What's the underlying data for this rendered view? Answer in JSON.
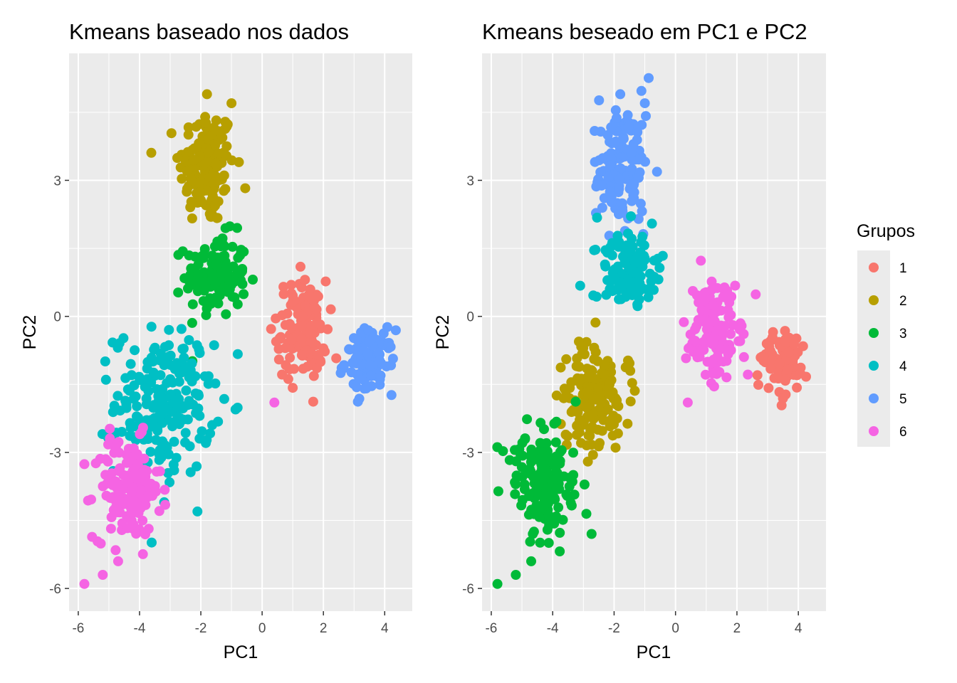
{
  "legend": {
    "title": "Grupos",
    "entries": [
      {
        "label": "1",
        "color": "#F8766D"
      },
      {
        "label": "2",
        "color": "#B79F00"
      },
      {
        "label": "3",
        "color": "#00BA38"
      },
      {
        "label": "4",
        "color": "#00BFC4"
      },
      {
        "label": "5",
        "color": "#619CFF"
      },
      {
        "label": "6",
        "color": "#F564E3"
      }
    ]
  },
  "chart_data": [
    {
      "type": "scatter",
      "title": "Kmeans baseado nos dados",
      "xlabel": "PC1",
      "ylabel": "PC2",
      "xlim": [
        -6.3,
        4.9
      ],
      "ylim": [
        -6.5,
        5.8
      ],
      "xticks": [
        -6,
        -4,
        -2,
        0,
        2,
        4
      ],
      "yticks": [
        -6,
        -3,
        0,
        3
      ],
      "grid": true,
      "legend": "none",
      "clusters": [
        {
          "group": "2",
          "cx": -1.8,
          "cy": 3.3,
          "sx": 0.45,
          "sy": 0.65,
          "n": 150
        },
        {
          "group": "3",
          "cx": -1.5,
          "cy": 0.9,
          "sx": 0.5,
          "sy": 0.45,
          "n": 130
        },
        {
          "group": "1",
          "cx": 1.3,
          "cy": -0.3,
          "sx": 0.4,
          "sy": 0.55,
          "n": 130
        },
        {
          "group": "5",
          "cx": 3.5,
          "cy": -1.0,
          "sx": 0.4,
          "sy": 0.35,
          "n": 100
        },
        {
          "group": "4",
          "cx": -3.2,
          "cy": -1.9,
          "sx": 0.8,
          "sy": 0.8,
          "n": 200
        },
        {
          "group": "6",
          "cx": -4.4,
          "cy": -3.8,
          "sx": 0.55,
          "sy": 0.55,
          "n": 150
        }
      ],
      "extra_points": [
        {
          "group": "6",
          "x": -5.8,
          "y": -5.9
        },
        {
          "group": "6",
          "x": -5.2,
          "y": -5.7
        },
        {
          "group": "6",
          "x": -4.7,
          "y": -5.4
        },
        {
          "group": "6",
          "x": 0.4,
          "y": -1.9
        },
        {
          "group": "2",
          "x": -1.0,
          "y": 4.7
        },
        {
          "group": "2",
          "x": -1.8,
          "y": 4.9
        }
      ]
    },
    {
      "type": "scatter",
      "title": "Kmeans beseado em PC1 e PC2",
      "xlabel": "PC1",
      "ylabel": "PC2",
      "xlim": [
        -6.3,
        4.9
      ],
      "ylim": [
        -6.5,
        5.8
      ],
      "xticks": [
        -6,
        -4,
        -2,
        0,
        2,
        4
      ],
      "yticks": [
        -6,
        -3,
        0,
        3
      ],
      "grid": true,
      "legend": "right",
      "clusters": [
        {
          "group": "5",
          "cx": -1.8,
          "cy": 3.3,
          "sx": 0.45,
          "sy": 0.65,
          "n": 150
        },
        {
          "group": "4",
          "cx": -1.5,
          "cy": 1.0,
          "sx": 0.5,
          "sy": 0.45,
          "n": 130
        },
        {
          "group": "6",
          "cx": 1.3,
          "cy": -0.3,
          "sx": 0.4,
          "sy": 0.55,
          "n": 130
        },
        {
          "group": "1",
          "cx": 3.5,
          "cy": -1.0,
          "sx": 0.4,
          "sy": 0.35,
          "n": 100
        },
        {
          "group": "2",
          "cx": -2.7,
          "cy": -1.8,
          "sx": 0.55,
          "sy": 0.6,
          "n": 150
        },
        {
          "group": "3",
          "cx": -4.3,
          "cy": -3.7,
          "sx": 0.55,
          "sy": 0.6,
          "n": 160
        }
      ],
      "extra_points": [
        {
          "group": "3",
          "x": -5.8,
          "y": -5.9
        },
        {
          "group": "3",
          "x": -5.2,
          "y": -5.7
        },
        {
          "group": "3",
          "x": -4.7,
          "y": -5.4
        },
        {
          "group": "6",
          "x": 0.4,
          "y": -1.9
        },
        {
          "group": "5",
          "x": -1.0,
          "y": 4.7
        },
        {
          "group": "5",
          "x": -1.8,
          "y": 4.9
        }
      ]
    }
  ]
}
